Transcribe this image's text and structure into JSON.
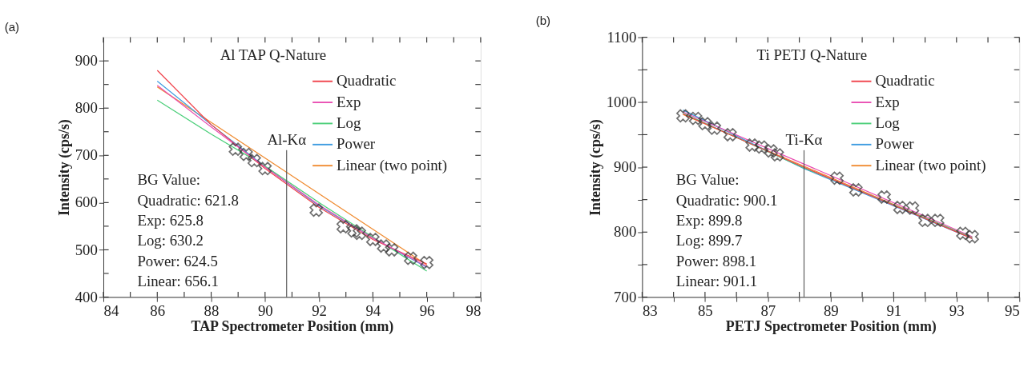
{
  "chart_data": [
    {
      "type": "line",
      "title": "(a)",
      "subtitle": "Al  TAP  Q-Nature",
      "xlabel": "TAP Spectrometer Position (mm)",
      "ylabel": "Intensity (cps/s)",
      "xlim": [
        84,
        98
      ],
      "xticks": [
        84,
        {
          "value": 85,
          "label": null
        },
        86,
        {
          "value": 87,
          "label": null
        },
        88,
        {
          "value": 89,
          "label": null
        },
        90,
        {
          "value": 91,
          "label": null
        },
        92,
        {
          "value": 93,
          "label": null
        },
        94,
        {
          "value": 95,
          "label": null
        },
        96,
        {
          "value": 97,
          "label": null
        },
        98
      ],
      "ylim": [
        400,
        950
      ],
      "yticks": [
        400,
        {
          "value": 450,
          "label": null
        },
        500,
        {
          "value": 550,
          "label": null
        },
        600,
        {
          "value": 650,
          "label": null
        },
        700,
        {
          "value": 750,
          "label": null
        },
        800,
        {
          "value": 850,
          "label": null
        },
        900
      ],
      "grid": false,
      "legend": "top right",
      "series": [
        {
          "name": "Quadratic",
          "color": "#f0414a",
          "x": [
            86,
            88,
            90,
            92,
            94,
            96
          ],
          "values": [
            880,
            765,
            672,
            590,
            522,
            470
          ]
        },
        {
          "name": "Exp",
          "color": "#e94fb3",
          "x": [
            86,
            88,
            90,
            92,
            94,
            96
          ],
          "values": [
            848,
            760,
            675,
            595,
            525,
            465
          ]
        },
        {
          "name": "Log",
          "color": "#4ccf7a",
          "x": [
            86,
            88,
            90,
            92,
            94,
            96
          ],
          "values": [
            817,
            745,
            677,
            600,
            527,
            455
          ]
        },
        {
          "name": "Power",
          "color": "#3d9be0",
          "x": [
            86,
            88,
            90,
            92,
            94,
            96
          ],
          "values": [
            857,
            765,
            676,
            593,
            525,
            463
          ]
        },
        {
          "name": "Linear (two point)",
          "color": "#f08c32",
          "x": [
            86,
            96
          ],
          "values": [
            845,
            468
          ]
        },
        {
          "type": "scatter",
          "marker": "cross",
          "color": "#333333",
          "x": [
            88.9,
            89.3,
            89.6,
            90.0,
            91.9,
            92.9,
            93.3,
            93.5,
            94.0,
            94.4,
            94.7,
            95.4,
            96.0
          ],
          "values": [
            713,
            702,
            689,
            672,
            584,
            549,
            540,
            535,
            522,
            508,
            500,
            482,
            473
          ]
        }
      ],
      "ref_lines": [
        {
          "axis": "x",
          "value": 90.8,
          "label": "Al-Kα"
        }
      ],
      "annotations": [
        "BG Value:",
        "Quadratic: 621.8",
        "Exp: 625.8",
        "Log: 630.2",
        "Power: 624.5",
        "Linear: 656.1"
      ]
    },
    {
      "type": "line",
      "title": "(b)",
      "subtitle": "Ti  PETJ  Q-Nature",
      "xlabel": "PETJ Spectrometer Position (mm)",
      "ylabel": "Intensity (cps/s)",
      "xlim": [
        83,
        95
      ],
      "xticks": [
        83,
        {
          "value": 84,
          "label": null
        },
        85,
        {
          "value": 86,
          "label": null
        },
        87,
        {
          "value": 88,
          "label": null
        },
        89,
        {
          "value": 90,
          "label": null
        },
        91,
        {
          "value": 92,
          "label": null
        },
        93,
        {
          "value": 94,
          "label": null
        },
        95
      ],
      "ylim": [
        700,
        1100
      ],
      "yticks": [
        700,
        {
          "value": 750,
          "label": null
        },
        800,
        {
          "value": 850,
          "label": null
        },
        900,
        {
          "value": 950,
          "label": null
        },
        1000,
        {
          "value": 1050,
          "label": null
        },
        1100
      ],
      "grid": false,
      "legend": "top right",
      "series": [
        {
          "name": "Quadratic",
          "color": "#f0414a",
          "x": [
            84.3,
            88.14,
            93.5
          ],
          "values": [
            982,
            900,
            790
          ]
        },
        {
          "name": "Exp",
          "color": "#e94fb3",
          "x": [
            84.3,
            93.5
          ],
          "values": [
            985,
            793
          ]
        },
        {
          "name": "Log",
          "color": "#4ccf7a",
          "x": [
            84.3,
            88.14,
            93.5
          ],
          "values": [
            983,
            899,
            792
          ]
        },
        {
          "name": "Power",
          "color": "#3d9be0",
          "x": [
            84.3,
            88.14,
            93.5
          ],
          "values": [
            988,
            898,
            790
          ]
        },
        {
          "name": "Linear (two point)",
          "color": "#f08c32",
          "x": [
            84.3,
            93.5
          ],
          "values": [
            981,
            791
          ]
        },
        {
          "type": "scatter",
          "marker": "cross",
          "color": "#333333",
          "x": [
            84.3,
            84.7,
            85.0,
            85.3,
            85.8,
            86.5,
            86.8,
            87.1,
            87.3,
            89.2,
            89.8,
            90.7,
            91.2,
            91.6,
            92.0,
            92.4,
            93.2,
            93.5
          ],
          "values": [
            979,
            975,
            967,
            960,
            950,
            934,
            931,
            925,
            919,
            883,
            865,
            854,
            838,
            837,
            818,
            818,
            798,
            793
          ]
        }
      ],
      "ref_lines": [
        {
          "axis": "x",
          "value": 88.15,
          "label": "Ti-Kα"
        }
      ],
      "annotations": [
        "BG Value:",
        "Quadratic: 900.1",
        "Exp: 899.8",
        "Log: 899.7",
        "Power: 898.1",
        "Linear: 901.1"
      ]
    }
  ]
}
